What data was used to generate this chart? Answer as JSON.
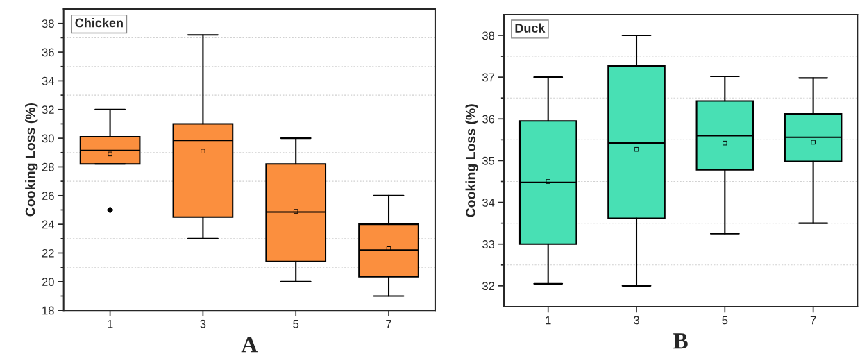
{
  "chart_data": [
    {
      "type": "box",
      "title": "Chicken",
      "xlabel": "A",
      "ylabel": "Cooking Loss (%)",
      "categories": [
        "1",
        "3",
        "5",
        "7"
      ],
      "color": "#fb8f3e",
      "ylim": [
        18,
        39
      ],
      "yticks": [
        18,
        {
          "value": 19,
          "label": null
        },
        20,
        {
          "value": 21,
          "label": null
        },
        22,
        {
          "value": 23,
          "label": null
        },
        24,
        {
          "value": 25,
          "label": null
        },
        26,
        {
          "value": 27,
          "label": null
        },
        28,
        {
          "value": 29,
          "label": null
        },
        30,
        {
          "value": 31,
          "label": null
        },
        32,
        {
          "value": 33,
          "label": null
        },
        34,
        {
          "value": 35,
          "label": null
        },
        36,
        {
          "value": 37,
          "label": null
        },
        38
      ],
      "grid": "y",
      "boxes": [
        {
          "low": 28.2,
          "q1": 28.2,
          "median": 29.15,
          "q3": 30.1,
          "high": 32,
          "mean": 28.9,
          "outliers": [
            25
          ]
        },
        {
          "low": 23,
          "q1": 24.5,
          "median": 29.85,
          "q3": 31,
          "high": 37.2,
          "mean": 29.1
        },
        {
          "low": 20,
          "q1": 21.4,
          "median": 24.85,
          "q3": 28.2,
          "high": 30,
          "mean": 24.9
        },
        {
          "low": 19,
          "q1": 20.35,
          "median": 22.2,
          "q3": 24,
          "high": 26,
          "mean": 22.3
        }
      ]
    },
    {
      "type": "box",
      "title": "Duck",
      "xlabel": "B",
      "ylabel": "Cooking Loss (%)",
      "categories": [
        "1",
        "3",
        "5",
        "7"
      ],
      "color": "#48e0b4",
      "ylim": [
        31.5,
        38.5
      ],
      "yticks": [
        32,
        {
          "value": 32.5,
          "label": null
        },
        33,
        {
          "value": 33.5,
          "label": null
        },
        34,
        {
          "value": 34.5,
          "label": null
        },
        35,
        {
          "value": 35.5,
          "label": null
        },
        36,
        {
          "value": 36.5,
          "label": null
        },
        37,
        {
          "value": 37.5,
          "label": null
        },
        38
      ],
      "grid": "y",
      "boxes": [
        {
          "low": 32.05,
          "q1": 33,
          "median": 34.48,
          "q3": 35.95,
          "high": 37,
          "mean": 34.5
        },
        {
          "low": 32,
          "q1": 33.62,
          "median": 35.42,
          "q3": 37.27,
          "high": 38,
          "mean": 35.27
        },
        {
          "low": 33.25,
          "q1": 34.78,
          "median": 35.6,
          "q3": 36.43,
          "high": 37.02,
          "mean": 35.42
        },
        {
          "low": 33.5,
          "q1": 34.98,
          "median": 35.56,
          "q3": 36.12,
          "high": 36.98,
          "mean": 35.44
        }
      ]
    }
  ]
}
